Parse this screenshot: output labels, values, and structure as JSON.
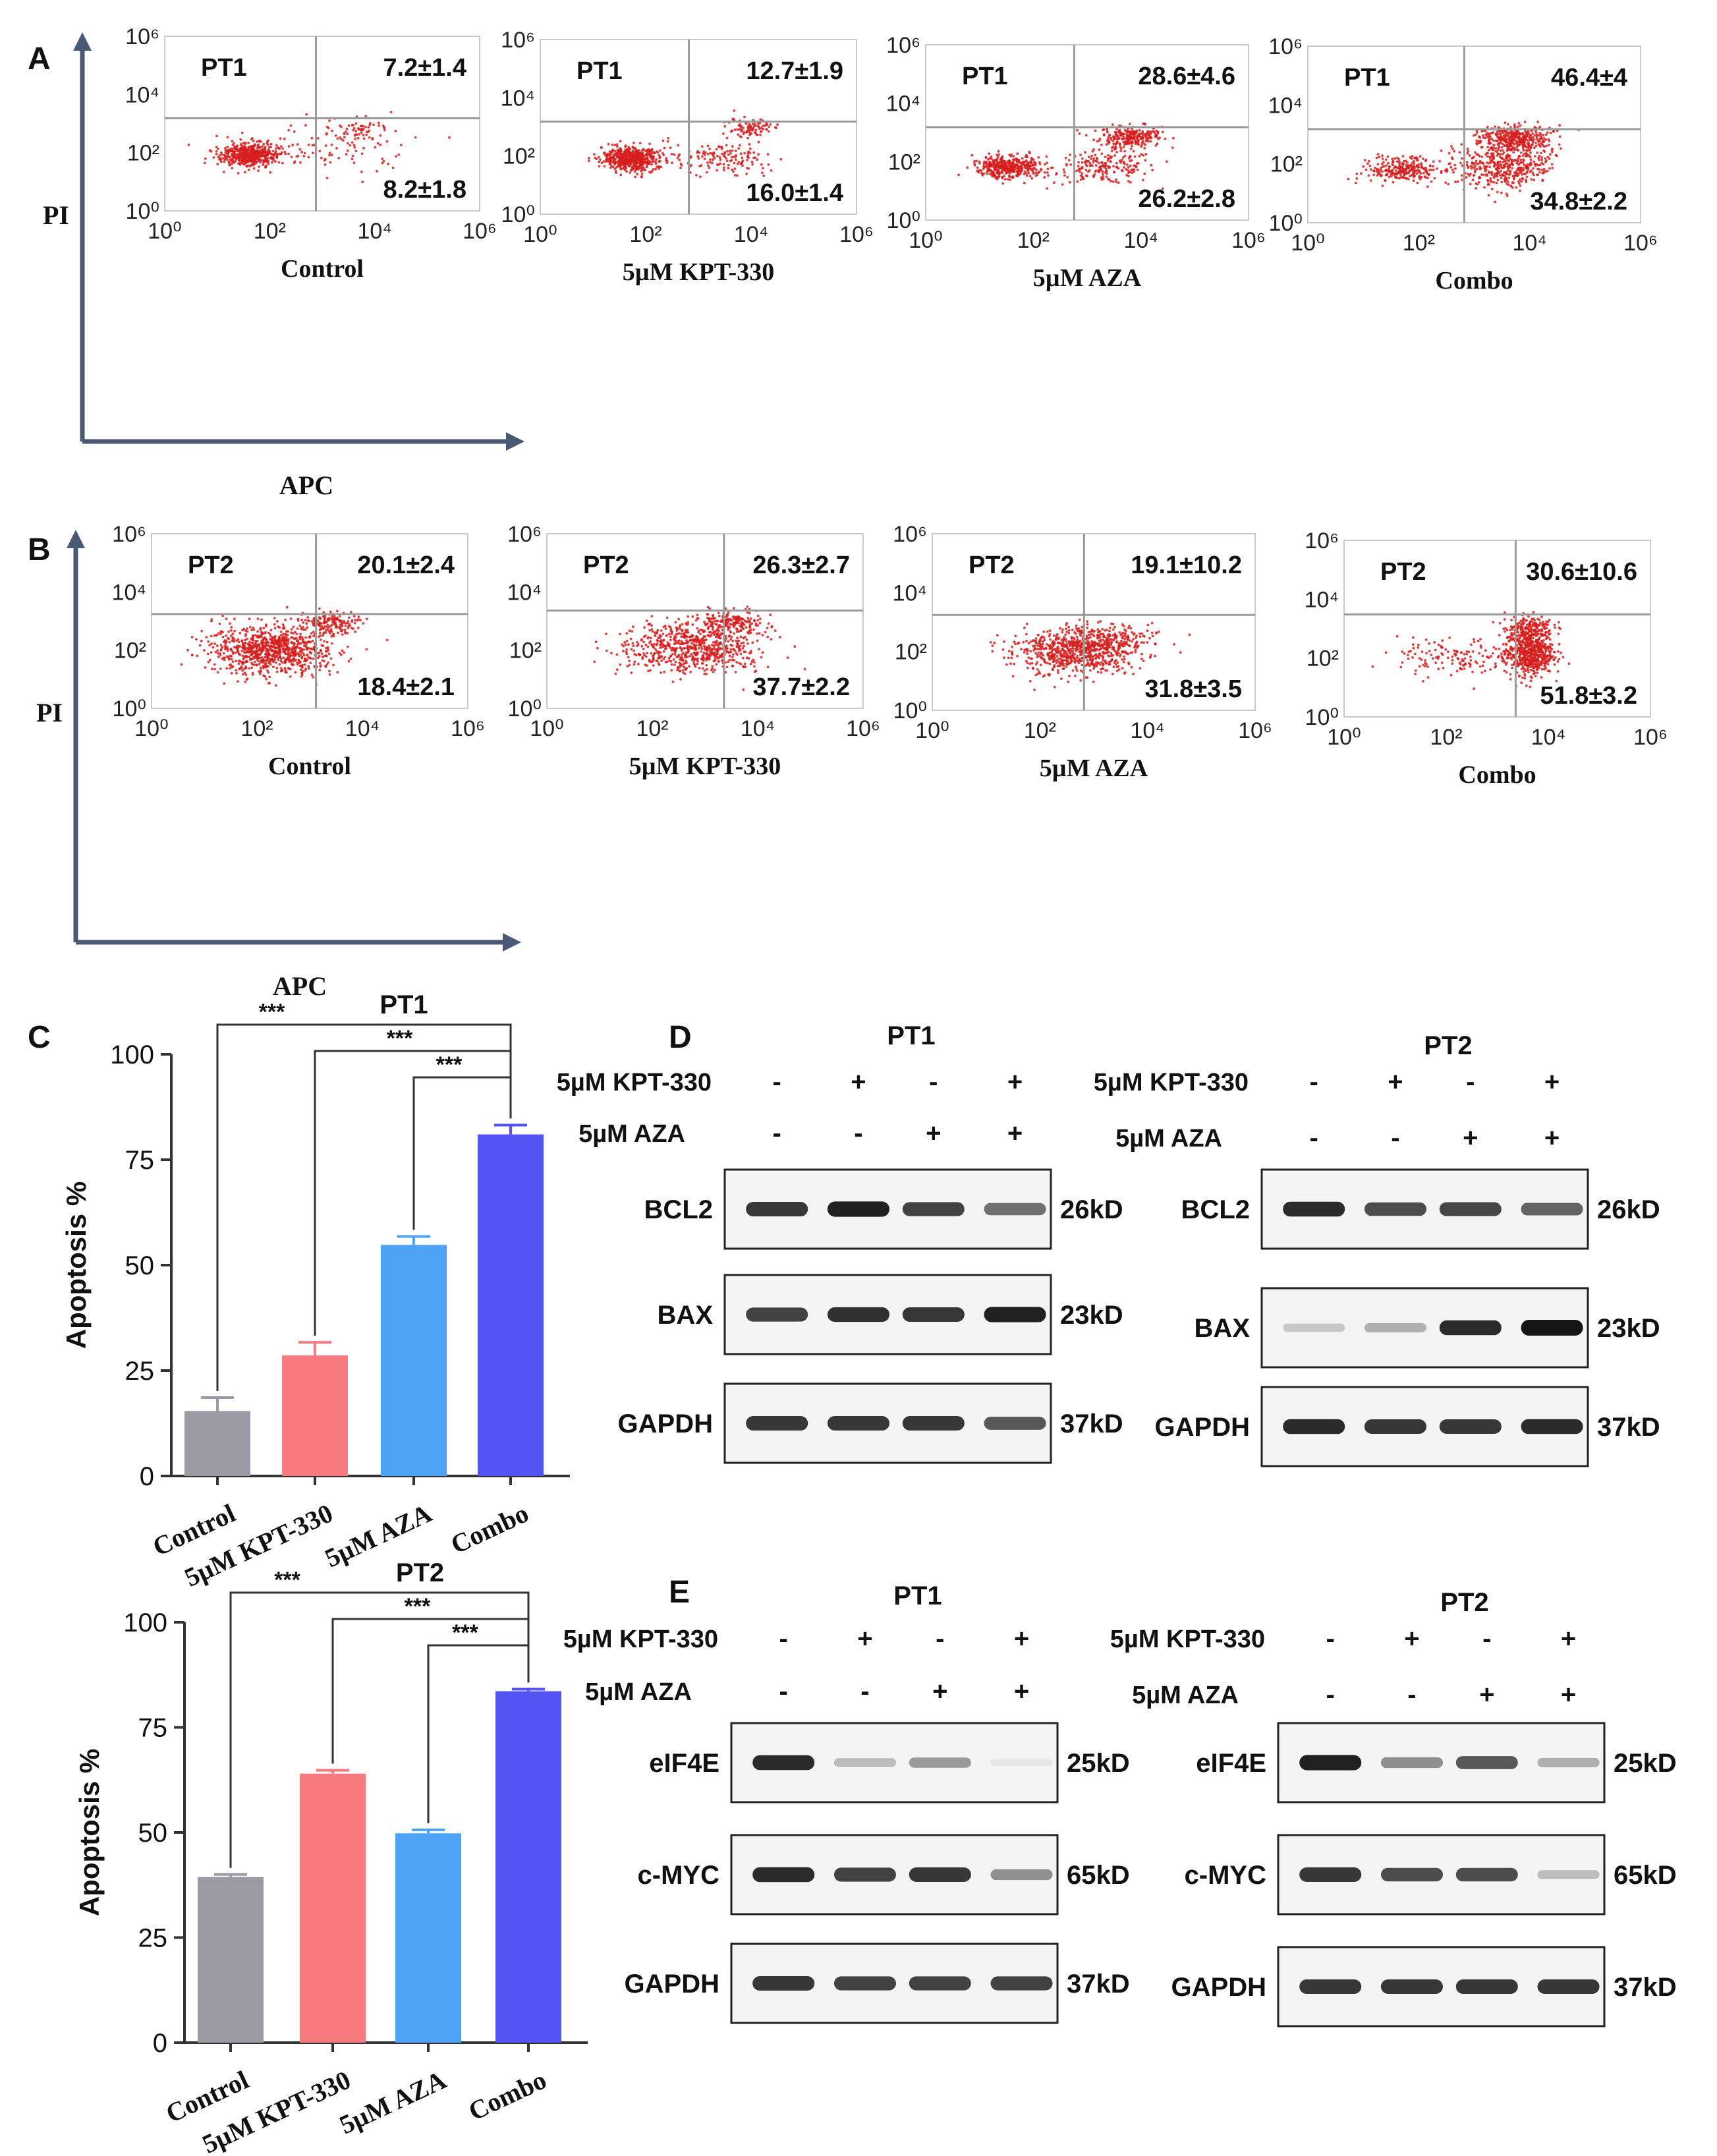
{
  "figure": {
    "panel_labels": {
      "A": "A",
      "B": "B",
      "C": "C",
      "D": "D",
      "E": "E"
    },
    "axis": {
      "x_title": "APC",
      "y_title": "PI",
      "ticks": [
        "10⁰",
        "10²",
        "10⁴",
        "10⁶"
      ]
    },
    "colors": {
      "dot": "#d61f1f",
      "gate": "#9a9a9a",
      "axis_arrow": "#4a5a74"
    }
  },
  "flow": {
    "rows": [
      {
        "id": "A",
        "panels": [
          {
            "sample": "PT1",
            "treatment": "Control",
            "ur": "7.2±1.4",
            "lr": "8.2±1.8"
          },
          {
            "sample": "PT1",
            "treatment": "5µM KPT-330",
            "ur": "12.7±1.9",
            "lr": "16.0±1.4"
          },
          {
            "sample": "PT1",
            "treatment": "5µM AZA",
            "ur": "28.6±4.6",
            "lr": "26.2±2.8"
          },
          {
            "sample": "PT1",
            "treatment": "Combo",
            "ur": "46.4±4",
            "lr": "34.8±2.2"
          }
        ]
      },
      {
        "id": "B",
        "panels": [
          {
            "sample": "PT2",
            "treatment": "Control",
            "ur": "20.1±2.4",
            "lr": "18.4±2.1"
          },
          {
            "sample": "PT2",
            "treatment": "5µM KPT-330",
            "ur": "26.3±2.7",
            "lr": "37.7±2.2"
          },
          {
            "sample": "PT2",
            "treatment": "5µM AZA",
            "ur": "19.1±10.2",
            "lr": "31.8±3.5"
          },
          {
            "sample": "PT2",
            "treatment": "Combo",
            "ur": "30.6±10.6",
            "lr": "51.8±3.2"
          }
        ]
      }
    ]
  },
  "chart_data": [
    {
      "type": "bar",
      "title": "PT1",
      "ylabel": "Apoptosis %",
      "categories": [
        "Control",
        "5µM KPT-330",
        "5µM AZA",
        "Combo"
      ],
      "values": [
        15.4,
        28.6,
        54.8,
        81.0
      ],
      "errors": [
        3.2,
        3.1,
        2.0,
        2.2
      ],
      "ylim": [
        0,
        100
      ],
      "yticks": [
        "0",
        "25",
        "50",
        "75",
        "100"
      ],
      "colors": [
        "#999aa3",
        "#f87a7e",
        "#4fa3f7",
        "#5453f4"
      ],
      "significance": [
        {
          "from": 0,
          "to": 3,
          "label": "***"
        },
        {
          "from": 1,
          "to": 3,
          "label": "***"
        },
        {
          "from": 2,
          "to": 3,
          "label": "***"
        }
      ]
    },
    {
      "type": "bar",
      "title": "PT2",
      "ylabel": "Apoptosis %",
      "categories": [
        "Control",
        "5µM KPT-330",
        "5µM AZA",
        "Combo"
      ],
      "values": [
        39.4,
        64.0,
        49.8,
        83.6
      ],
      "errors": [
        0.6,
        0.8,
        0.8,
        0.5
      ],
      "ylim": [
        0,
        100
      ],
      "yticks": [
        "0",
        "25",
        "50",
        "75",
        "100"
      ],
      "colors": [
        "#999aa3",
        "#f87a7e",
        "#4fa3f7",
        "#5453f4"
      ],
      "significance": [
        {
          "from": 0,
          "to": 3,
          "label": "***"
        },
        {
          "from": 1,
          "to": 3,
          "label": "***"
        },
        {
          "from": 2,
          "to": 3,
          "label": "***"
        }
      ]
    }
  ],
  "westerns": {
    "treat_rows": [
      {
        "label": "5µM KPT-330",
        "signs": [
          "-",
          "+",
          "-",
          "+"
        ]
      },
      {
        "label": "5µM AZA",
        "signs": [
          "-",
          "-",
          "+",
          "+"
        ]
      }
    ],
    "D": [
      {
        "sample": "PT1",
        "blots": [
          {
            "protein": "BCL2",
            "size": "26kD",
            "bands": [
              0.85,
              0.95,
              0.8,
              0.6
            ]
          },
          {
            "protein": "BAX",
            "size": "23kD",
            "bands": [
              0.8,
              0.88,
              0.85,
              0.95
            ]
          },
          {
            "protein": "GAPDH",
            "size": "37kD",
            "bands": [
              0.85,
              0.85,
              0.85,
              0.7
            ]
          }
        ]
      },
      {
        "sample": "PT2",
        "blots": [
          {
            "protein": "BCL2",
            "size": "26kD",
            "bands": [
              0.9,
              0.75,
              0.78,
              0.65
            ]
          },
          {
            "protein": "BAX",
            "size": "23kD",
            "bands": [
              0.2,
              0.3,
              0.9,
              1.0
            ]
          },
          {
            "protein": "GAPDH",
            "size": "37kD",
            "bands": [
              0.9,
              0.85,
              0.85,
              0.9
            ]
          }
        ]
      }
    ],
    "E": [
      {
        "sample": "PT1",
        "blots": [
          {
            "protein": "eIF4E",
            "size": "25kD",
            "bands": [
              0.9,
              0.25,
              0.4,
              0.06
            ]
          },
          {
            "protein": "c-MYC",
            "size": "65kD",
            "bands": [
              0.9,
              0.8,
              0.85,
              0.45
            ]
          },
          {
            "protein": "GAPDH",
            "size": "37kD",
            "bands": [
              0.85,
              0.8,
              0.8,
              0.8
            ]
          }
        ]
      },
      {
        "sample": "PT2",
        "blots": [
          {
            "protein": "eIF4E",
            "size": "25kD",
            "bands": [
              0.95,
              0.45,
              0.7,
              0.3
            ]
          },
          {
            "protein": "c-MYC",
            "size": "65kD",
            "bands": [
              0.85,
              0.75,
              0.75,
              0.25
            ]
          },
          {
            "protein": "GAPDH",
            "size": "37kD",
            "bands": [
              0.85,
              0.85,
              0.85,
              0.85
            ]
          }
        ]
      }
    ]
  }
}
